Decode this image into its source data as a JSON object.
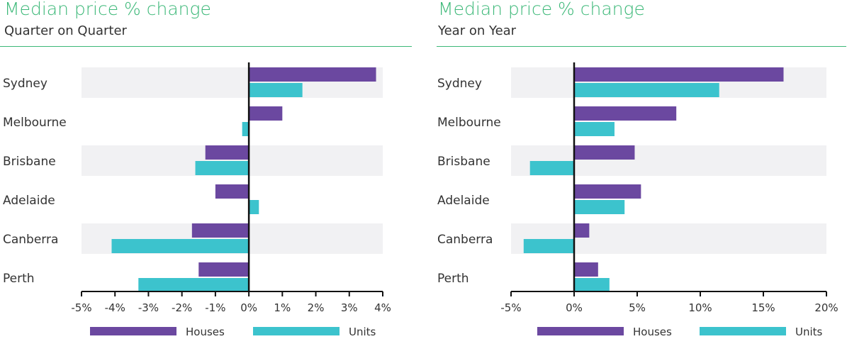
{
  "colors": {
    "accent": "#3cb878",
    "houses": "#6b48a0",
    "units": "#3cc3cd",
    "band": "#f1f1f3",
    "text": "#333333",
    "axis": "#111111"
  },
  "chart_data": [
    {
      "type": "bar",
      "orientation": "horizontal",
      "title": "Median price % change",
      "subtitle": "Quarter on Quarter",
      "categories": [
        "Sydney",
        "Melbourne",
        "Brisbane",
        "Adelaide",
        "Canberra",
        "Perth"
      ],
      "series": [
        {
          "name": "Houses",
          "color": "#6b48a0",
          "values": [
            3.8,
            1.0,
            -1.3,
            -1.0,
            -1.7,
            -1.5
          ]
        },
        {
          "name": "Units",
          "color": "#3cc3cd",
          "values": [
            1.6,
            -0.2,
            -1.6,
            0.3,
            -4.1,
            -3.3
          ]
        }
      ],
      "xlim": [
        -5,
        4
      ],
      "xticks": [
        -5,
        -4,
        -3,
        -2,
        -1,
        0,
        1,
        2,
        3,
        4
      ],
      "tick_labels": [
        "-5%",
        "-4%",
        "-3%",
        "-2%",
        "-1%",
        "0%",
        "1%",
        "2%",
        "3%",
        "4%"
      ],
      "legend": [
        "Houses",
        "Units"
      ],
      "legend_position": "bottom"
    },
    {
      "type": "bar",
      "orientation": "horizontal",
      "title": "Median price % change",
      "subtitle": "Year on Year",
      "categories": [
        "Sydney",
        "Melbourne",
        "Brisbane",
        "Adelaide",
        "Canberra",
        "Perth"
      ],
      "series": [
        {
          "name": "Houses",
          "color": "#6b48a0",
          "values": [
            16.6,
            8.1,
            4.8,
            5.3,
            1.2,
            1.9
          ]
        },
        {
          "name": "Units",
          "color": "#3cc3cd",
          "values": [
            11.5,
            3.2,
            -3.5,
            4.0,
            -4.0,
            2.8
          ]
        }
      ],
      "xlim": [
        -5,
        20
      ],
      "xticks": [
        -5,
        0,
        5,
        10,
        15,
        20
      ],
      "tick_labels": [
        "-5%",
        "0%",
        "5%",
        "10%",
        "15%",
        "20%"
      ],
      "legend": [
        "Houses",
        "Units"
      ],
      "legend_position": "bottom"
    }
  ]
}
